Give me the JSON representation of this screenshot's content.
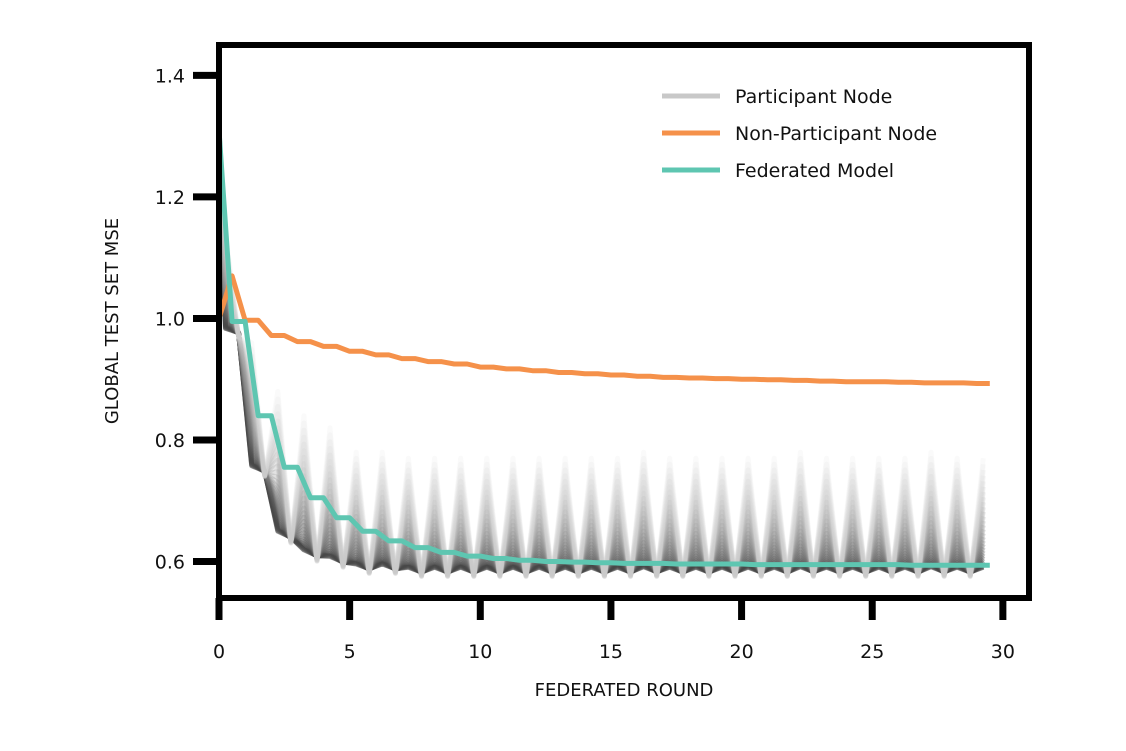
{
  "chart_data": {
    "type": "line",
    "title": "",
    "xlabel": "FEDERATED ROUND",
    "ylabel": "GLOBAL TEST SET MSE",
    "xlim": [
      0,
      31
    ],
    "ylim": [
      0.54,
      1.45
    ],
    "xticks": [
      0,
      5,
      10,
      15,
      20,
      25,
      30
    ],
    "yticks": [
      0.6,
      0.8,
      1.0,
      1.2,
      1.4
    ],
    "ytick_labels": [
      "0.6",
      "0.8",
      "1.0",
      "1.2",
      "1.4"
    ],
    "grid": false,
    "legend_position": "top-right",
    "participant_nodes": {
      "name": "Participant Node",
      "color": "#c8c8c8",
      "count": 30,
      "x_step": 0.5,
      "start_value": 1.31,
      "low_envelope": [
        0.97,
        0.74,
        0.63,
        0.6,
        0.59,
        0.58,
        0.58,
        0.575,
        0.575,
        0.575,
        0.575,
        0.575,
        0.575,
        0.575,
        0.575,
        0.575,
        0.575,
        0.575,
        0.575,
        0.575,
        0.575,
        0.575,
        0.575,
        0.575,
        0.575,
        0.575,
        0.575,
        0.575,
        0.575,
        0.575
      ],
      "high_envelope": [
        1.14,
        0.96,
        0.88,
        0.84,
        0.82,
        0.78,
        0.78,
        0.77,
        0.77,
        0.77,
        0.77,
        0.77,
        0.77,
        0.77,
        0.77,
        0.77,
        0.78,
        0.77,
        0.77,
        0.77,
        0.77,
        0.77,
        0.78,
        0.77,
        0.77,
        0.77,
        0.77,
        0.78,
        0.77,
        0.77
      ]
    },
    "series": [
      {
        "name": "Non-Participant Node",
        "color": "#f5914a",
        "x": [
          0,
          0.5,
          1,
          1.5,
          2,
          2.5,
          3,
          3.5,
          4,
          4.5,
          5,
          5.5,
          6,
          6.5,
          7,
          7.5,
          8,
          8.5,
          9,
          9.5,
          10,
          10.5,
          11,
          11.5,
          12,
          12.5,
          13,
          13.5,
          14,
          14.5,
          15,
          15.5,
          16,
          16.5,
          17,
          17.5,
          18,
          18.5,
          19,
          19.5,
          20,
          20.5,
          21,
          21.5,
          22,
          22.5,
          23,
          23.5,
          24,
          24.5,
          25,
          25.5,
          26,
          26.5,
          27,
          27.5,
          28,
          28.5,
          29,
          29.5
        ],
        "values": [
          1.0,
          1.07,
          0.997,
          0.997,
          0.972,
          0.972,
          0.962,
          0.962,
          0.954,
          0.954,
          0.946,
          0.946,
          0.94,
          0.94,
          0.934,
          0.934,
          0.929,
          0.929,
          0.925,
          0.925,
          0.92,
          0.92,
          0.917,
          0.917,
          0.914,
          0.914,
          0.911,
          0.911,
          0.909,
          0.909,
          0.907,
          0.907,
          0.905,
          0.905,
          0.903,
          0.903,
          0.902,
          0.902,
          0.901,
          0.901,
          0.9,
          0.9,
          0.899,
          0.899,
          0.898,
          0.898,
          0.897,
          0.897,
          0.896,
          0.896,
          0.896,
          0.896,
          0.895,
          0.895,
          0.894,
          0.894,
          0.894,
          0.894,
          0.893,
          0.893
        ]
      },
      {
        "name": "Federated Model",
        "color": "#5ec6b1",
        "x": [
          0,
          0.5,
          1,
          1.5,
          2,
          2.5,
          3,
          3.5,
          4,
          4.5,
          5,
          5.5,
          6,
          6.5,
          7,
          7.5,
          8,
          8.5,
          9,
          9.5,
          10,
          10.5,
          11,
          11.5,
          12,
          12.5,
          13,
          13.5,
          14,
          14.5,
          15,
          15.5,
          16,
          16.5,
          17,
          17.5,
          18,
          18.5,
          19,
          19.5,
          20,
          20.5,
          21,
          21.5,
          22,
          22.5,
          23,
          23.5,
          24,
          24.5,
          25,
          25.5,
          26,
          26.5,
          27,
          27.5,
          28,
          28.5,
          29,
          29.5
        ],
        "values": [
          1.31,
          0.995,
          0.995,
          0.84,
          0.84,
          0.755,
          0.755,
          0.705,
          0.705,
          0.672,
          0.672,
          0.65,
          0.65,
          0.634,
          0.634,
          0.623,
          0.623,
          0.615,
          0.615,
          0.609,
          0.609,
          0.605,
          0.605,
          0.602,
          0.602,
          0.6,
          0.6,
          0.599,
          0.599,
          0.598,
          0.598,
          0.597,
          0.597,
          0.597,
          0.597,
          0.596,
          0.596,
          0.596,
          0.596,
          0.596,
          0.596,
          0.595,
          0.595,
          0.595,
          0.595,
          0.595,
          0.595,
          0.595,
          0.595,
          0.595,
          0.595,
          0.595,
          0.595,
          0.594,
          0.594,
          0.594,
          0.594,
          0.594,
          0.594,
          0.594
        ]
      }
    ],
    "legend": [
      {
        "label": "Participant Node",
        "color": "#c8c8c8"
      },
      {
        "label": "Non-Participant Node",
        "color": "#f5914a"
      },
      {
        "label": "Federated Model",
        "color": "#5ec6b1"
      }
    ]
  }
}
